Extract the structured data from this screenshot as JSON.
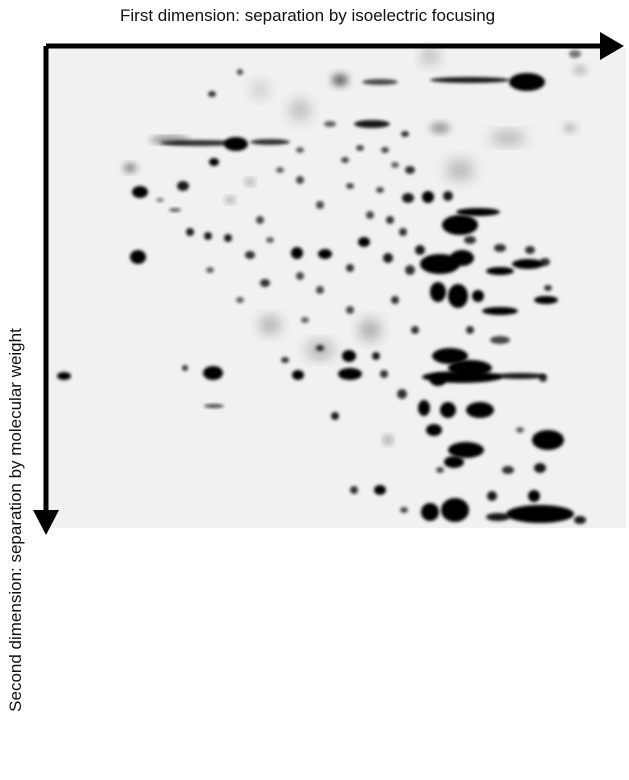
{
  "labels": {
    "x_axis": "First dimension: separation by isoelectric focusing",
    "y_axis": "Second dimension: separation by molecular weight"
  }
}
